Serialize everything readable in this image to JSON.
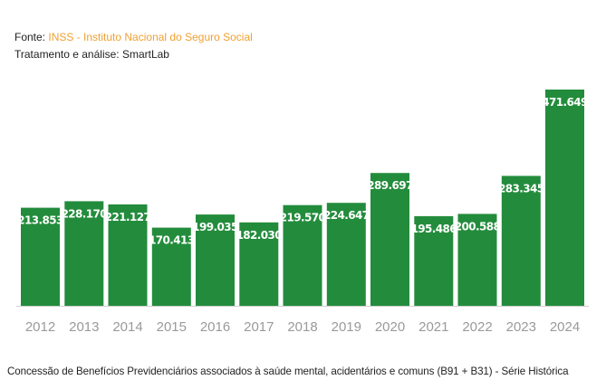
{
  "source": {
    "prefix": "Fonte: ",
    "name": "INSS - Instituto Nacional do Seguro Social"
  },
  "analysis": "Tratamento e análise: SmartLab",
  "caption": "Concessão de Benefícios Previdenciários associados à saúde mental, acidentários e comuns (B91 + B31) - Série Histórica",
  "colors": {
    "bar": "#238c3c",
    "source_name": "#f0a030",
    "tick": "#9a9a9a"
  },
  "chart_data": {
    "type": "bar",
    "categories": [
      "2012",
      "2013",
      "2014",
      "2015",
      "2016",
      "2017",
      "2018",
      "2019",
      "2020",
      "2021",
      "2022",
      "2023",
      "2024"
    ],
    "values": [
      213853,
      228170,
      221127,
      170413,
      199035,
      182030,
      219570,
      224647,
      289697,
      195486,
      200588,
      283345,
      471649
    ],
    "value_labels": [
      "213.853",
      "228.170",
      "221.127",
      "170.413",
      "199.035",
      "182.030",
      "219.570",
      "224.647",
      "289.697",
      "195.486",
      "200.588",
      "283.345",
      "471.649"
    ],
    "ylim": [
      0,
      480000
    ],
    "grid": false,
    "legend": "none"
  }
}
